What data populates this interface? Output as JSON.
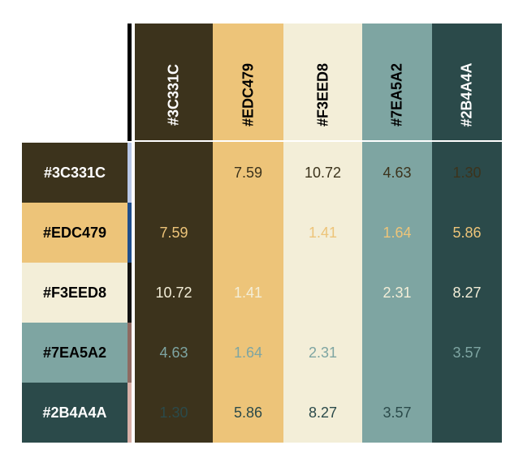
{
  "colors": [
    "#3C331C",
    "#EDC479",
    "#F3EED8",
    "#7EA5A2",
    "#2B4A4A"
  ],
  "column_headers": [
    "#3C331C",
    "#EDC479",
    "#F3EED8",
    "#7EA5A2",
    "#2B4A4A"
  ],
  "row_headers": [
    "#3C331C",
    "#EDC479",
    "#F3EED8",
    "#7EA5A2",
    "#2B4A4A"
  ],
  "row_header_text_colors": [
    "#ffffff",
    "#000000",
    "#000000",
    "#000000",
    "#ffffff"
  ],
  "column_header_text_colors": [
    "#ffffff",
    "#000000",
    "#000000",
    "#000000",
    "#ffffff"
  ],
  "stripe_colors": [
    "#B8C7E6",
    "#1F4E8C",
    "#111111",
    "#8E6A62",
    "#D8B0A8"
  ],
  "matrix": [
    [
      "",
      "7.59",
      "10.72",
      "4.63",
      "1.30"
    ],
    [
      "7.59",
      "",
      "1.41",
      "1.64",
      "5.86"
    ],
    [
      "10.72",
      "1.41",
      "",
      "2.31",
      "8.27"
    ],
    [
      "4.63",
      "1.64",
      "2.31",
      "",
      "3.57"
    ],
    [
      "1.30",
      "5.86",
      "8.27",
      "3.57",
      ""
    ]
  ]
}
